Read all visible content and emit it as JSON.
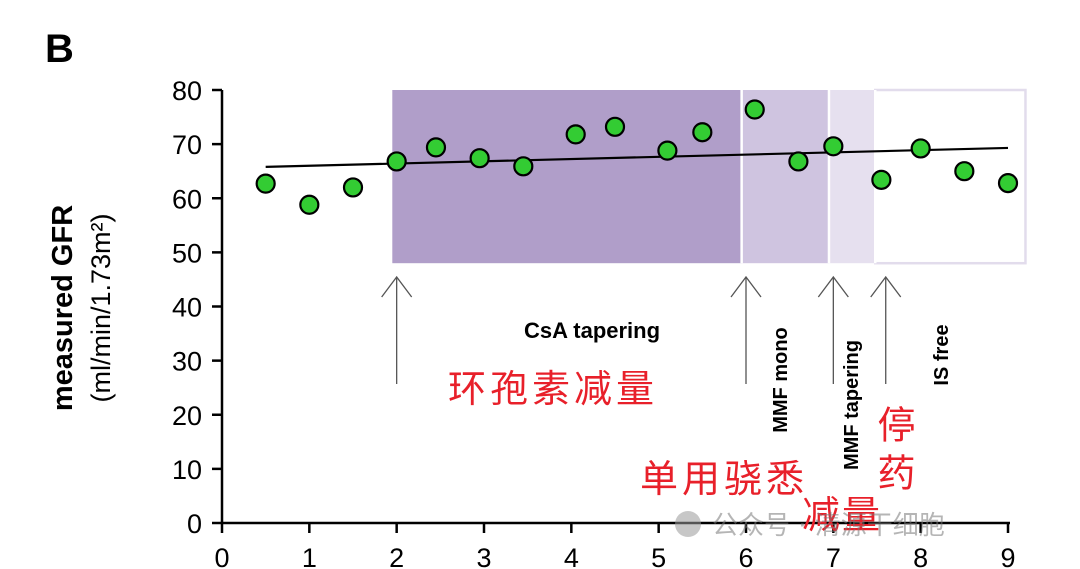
{
  "panel_label": "B",
  "watermark": "公众号 · 清源干细胞",
  "chart_data": {
    "type": "scatter",
    "title": "",
    "ylabel": "measured GFR",
    "ylabel_unit": "(ml/min/1.73m²)",
    "xlabel": "",
    "xlim": [
      0,
      9
    ],
    "ylim": [
      0,
      80
    ],
    "x_ticks": [
      0,
      1,
      2,
      3,
      4,
      5,
      6,
      7,
      8,
      9
    ],
    "y_ticks": [
      0,
      10,
      20,
      30,
      40,
      50,
      60,
      70,
      80
    ],
    "grid": false,
    "legend": "none",
    "point_color": "#33cc33",
    "trend_line": {
      "x": [
        0.5,
        9.0
      ],
      "y": [
        65.8,
        69.3
      ]
    },
    "points": [
      {
        "x": 0.5,
        "y": 62.7
      },
      {
        "x": 1.0,
        "y": 58.8
      },
      {
        "x": 1.5,
        "y": 62.0
      },
      {
        "x": 2.0,
        "y": 66.8
      },
      {
        "x": 2.45,
        "y": 69.4
      },
      {
        "x": 2.95,
        "y": 67.4
      },
      {
        "x": 3.45,
        "y": 65.9
      },
      {
        "x": 4.05,
        "y": 71.8
      },
      {
        "x": 4.5,
        "y": 73.2
      },
      {
        "x": 5.1,
        "y": 68.8
      },
      {
        "x": 5.5,
        "y": 72.2
      },
      {
        "x": 6.1,
        "y": 76.4
      },
      {
        "x": 6.6,
        "y": 66.8
      },
      {
        "x": 7.0,
        "y": 69.6
      },
      {
        "x": 7.55,
        "y": 63.4
      },
      {
        "x": 8.0,
        "y": 69.2
      },
      {
        "x": 8.5,
        "y": 65.0
      },
      {
        "x": 9.0,
        "y": 62.8
      }
    ],
    "phases": [
      {
        "x0": 1.95,
        "x1": 5.95,
        "y0": 48,
        "y1": 80,
        "fill": "#b09ec9",
        "stroke": "none",
        "label": "CsA tapering",
        "label_cn": "环孢素减量"
      },
      {
        "x0": 5.95,
        "x1": 6.95,
        "y0": 48,
        "y1": 80,
        "fill": "#cfc4e0",
        "stroke": "none",
        "label": "MMF mono",
        "label_cn": "单用骁悉"
      },
      {
        "x0": 6.95,
        "x1": 7.48,
        "y0": 48,
        "y1": 80,
        "fill": "#e6e0ef",
        "stroke": "none",
        "label": "MMF tapering",
        "label_cn": "减量"
      },
      {
        "x0": 7.48,
        "x1": 9.2,
        "y0": 48,
        "y1": 80,
        "fill": "#ffffff",
        "stroke": "#e2dcec",
        "label": "IS free",
        "label_cn": "停药"
      }
    ],
    "arrows_at_x": [
      2.0,
      6.0,
      7.0,
      7.6
    ]
  }
}
